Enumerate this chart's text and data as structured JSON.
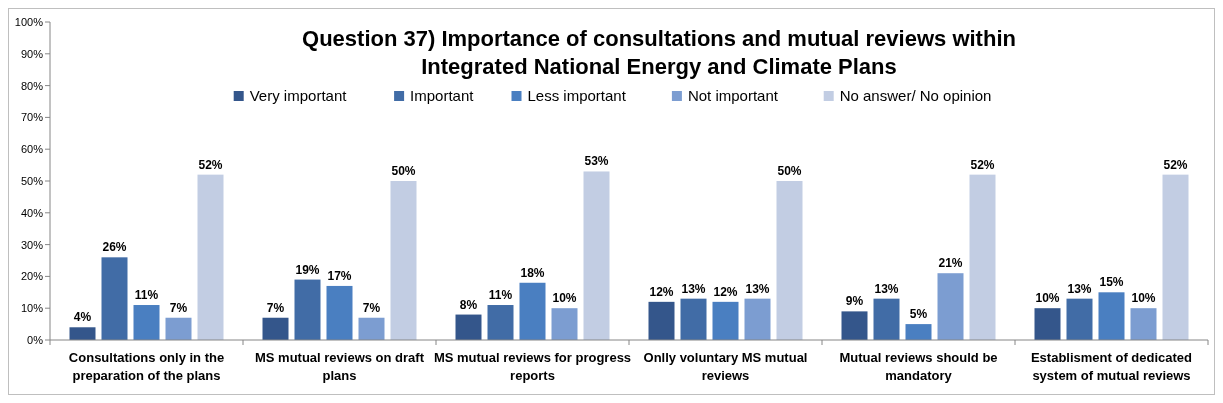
{
  "chart_data": {
    "type": "bar",
    "title": "Question 37) Importance of consultations and mutual reviews within Integrated National Energy and Climate Plans",
    "categories": [
      "Consultations only in the preparation of the plans",
      "MS mutual reviews on draft plans",
      "MS mutual reviews for progress reports",
      "Onlly voluntary MS mutual reviews",
      "Mutual reviews should be mandatory",
      "Establisment of dedicated system of mutual reviews"
    ],
    "series": [
      {
        "name": "Very important",
        "color": "#34568b",
        "values": [
          4,
          7,
          8,
          12,
          9,
          10
        ],
        "value_labels": [
          "4%",
          "7%",
          "8%",
          "12%",
          "9%",
          "10%"
        ]
      },
      {
        "name": "Important",
        "color": "#416ca6",
        "values": [
          26,
          19,
          11,
          13,
          13,
          13
        ],
        "value_labels": [
          "26%",
          "19%",
          "11%",
          "13%",
          "13%",
          "13%"
        ]
      },
      {
        "name": "Less important",
        "color": "#4a7fc1",
        "values": [
          11,
          17,
          18,
          12,
          5,
          15
        ],
        "value_labels": [
          "11%",
          "17%",
          "18%",
          "12%",
          "5%",
          "15%"
        ]
      },
      {
        "name": "Not important",
        "color": "#7c9dd1",
        "values": [
          7,
          7,
          10,
          13,
          21,
          10
        ],
        "value_labels": [
          "7%",
          "7%",
          "10%",
          "13%",
          "21%",
          "10%"
        ]
      },
      {
        "name": "No answer/ No opinion",
        "color": "#c2cde3",
        "values": [
          52,
          50,
          53,
          50,
          52,
          52
        ],
        "value_labels": [
          "52%",
          "50%",
          "53%",
          "50%",
          "52%",
          "52%"
        ]
      }
    ],
    "ylim": [
      0,
      100
    ],
    "yticks": [
      {
        "value": 0,
        "label": "0%"
      },
      {
        "value": 10,
        "label": "10%"
      },
      {
        "value": 20,
        "label": "20%"
      },
      {
        "value": 30,
        "label": "30%"
      },
      {
        "value": 40,
        "label": "40%"
      },
      {
        "value": 50,
        "label": "50%"
      },
      {
        "value": 60,
        "label": "60%"
      },
      {
        "value": 70,
        "label": "70%"
      },
      {
        "value": 80,
        "label": "80%"
      },
      {
        "value": 90,
        "label": "90%"
      },
      {
        "value": 100,
        "label": "100%"
      }
    ],
    "grid": false,
    "legend": "top"
  }
}
